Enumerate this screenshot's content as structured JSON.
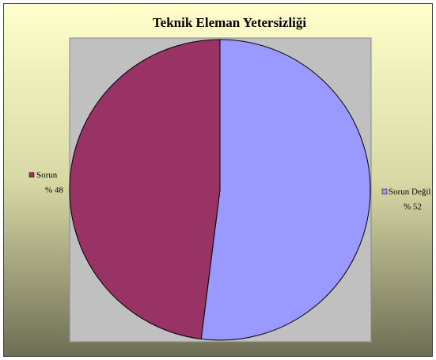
{
  "chart_data": {
    "type": "pie",
    "title": "Teknik Eleman Yetersizliği",
    "categories": [
      "Sorun Değil",
      "Sorun"
    ],
    "values": [
      52,
      48
    ],
    "value_labels": [
      "% 52",
      "% 48"
    ],
    "colors": [
      "#9999ff",
      "#993366"
    ]
  }
}
